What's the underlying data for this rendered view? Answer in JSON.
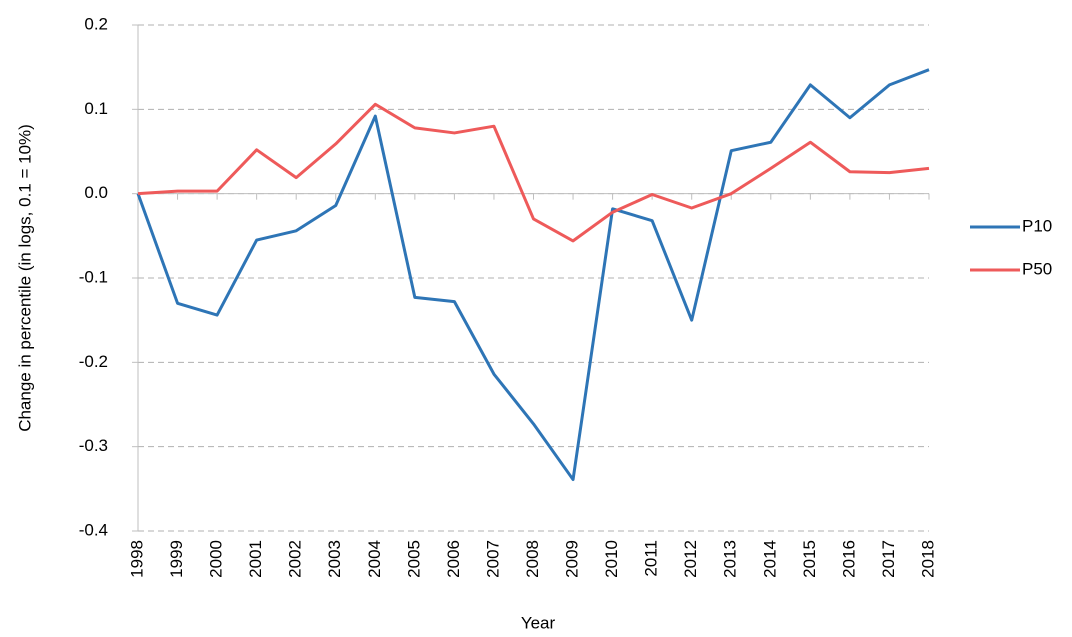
{
  "chart_data": {
    "type": "line",
    "x_label": "Year",
    "y_label": "Change in percentile (in logs, 0.1 = 10%)",
    "categories": [
      "1998",
      "1999",
      "2000",
      "2001",
      "2002",
      "2003",
      "2004",
      "2005",
      "2006",
      "2007",
      "2008",
      "2009",
      "2010",
      "2011",
      "2012",
      "2013",
      "2014",
      "2015",
      "2016",
      "2017",
      "2018"
    ],
    "series": [
      {
        "name": "P10",
        "color": "#2e75b6",
        "values": [
          0,
          -0.13,
          -0.144,
          -0.055,
          -0.044,
          -0.014,
          0.092,
          -0.123,
          -0.128,
          -0.214,
          -0.273,
          -0.339,
          -0.018,
          -0.032,
          -0.15,
          0.051,
          0.061,
          0.129,
          0.09,
          0.129,
          0.147
        ]
      },
      {
        "name": "P50",
        "color": "#ee5a5a",
        "values": [
          0,
          0.003,
          0.003,
          0.052,
          0.019,
          0.059,
          0.106,
          0.078,
          0.072,
          0.08,
          -0.03,
          -0.056,
          -0.022,
          -0.001,
          -0.017,
          0,
          0.03,
          0.061,
          0.026,
          0.025,
          0.03
        ]
      }
    ],
    "ylim": [
      -0.4,
      0.2
    ],
    "yticks": [
      0.2,
      0.1,
      {
        "value": 0,
        "label": "0.0"
      },
      -0.1,
      -0.2,
      -0.3,
      -0.4
    ],
    "grid": true,
    "legend": "right"
  }
}
